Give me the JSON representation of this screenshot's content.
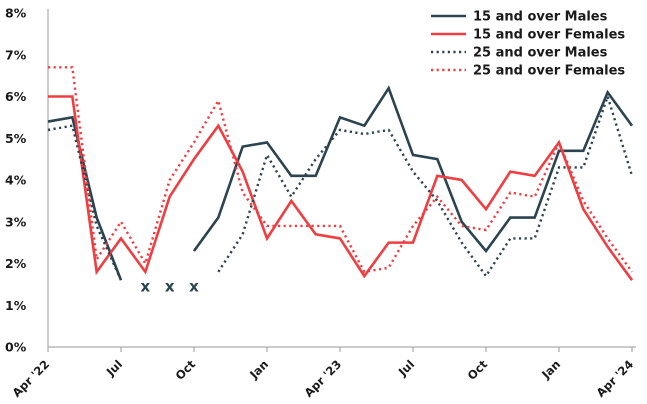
{
  "chart_data": {
    "type": "line",
    "title": "",
    "xlabel": "",
    "ylabel": "",
    "ylim": [
      0,
      8
    ],
    "y_ticks": [
      "0%",
      "1%",
      "2%",
      "3%",
      "4%",
      "5%",
      "6%",
      "7%",
      "8%"
    ],
    "x_tick_labels": [
      {
        "index": 0,
        "label": "Apr '22"
      },
      {
        "index": 3,
        "label": "Jul"
      },
      {
        "index": 6,
        "label": "Oct"
      },
      {
        "index": 9,
        "label": "Jan"
      },
      {
        "index": 12,
        "label": "Apr '23"
      },
      {
        "index": 15,
        "label": "Jul"
      },
      {
        "index": 18,
        "label": "Oct"
      },
      {
        "index": 21,
        "label": "Jan"
      },
      {
        "index": 24,
        "label": "Apr '24"
      }
    ],
    "grid": false,
    "legend_position": "top-right",
    "missing_marker": "x",
    "missing_indices": [
      4,
      5,
      6
    ],
    "series": [
      {
        "name": "15 and over  Males",
        "color": "#2b4450",
        "dash": "solid",
        "values": [
          5.4,
          5.5,
          3.1,
          1.6,
          null,
          null,
          2.3,
          3.1,
          4.8,
          4.9,
          4.1,
          4.1,
          5.5,
          5.3,
          6.2,
          4.6,
          4.5,
          3.0,
          2.3,
          3.1,
          3.1,
          4.7,
          4.7,
          6.1,
          5.3
        ]
      },
      {
        "name": "15 and over  Females",
        "color": "#ef3e42",
        "dash": "solid",
        "values": [
          6.0,
          6.0,
          1.8,
          2.6,
          1.8,
          3.6,
          4.5,
          5.3,
          4.2,
          2.6,
          3.5,
          2.7,
          2.6,
          1.7,
          2.5,
          2.5,
          4.1,
          4.0,
          3.3,
          4.2,
          4.1,
          4.9,
          3.3,
          2.4,
          1.6
        ]
      },
      {
        "name": "25 and over  Males",
        "color": "#2b4450",
        "dash": "dotted",
        "values": [
          5.2,
          5.3,
          2.9,
          1.6,
          null,
          null,
          null,
          1.8,
          2.7,
          4.6,
          3.6,
          4.5,
          5.2,
          5.1,
          5.2,
          4.2,
          3.5,
          2.5,
          1.7,
          2.6,
          2.6,
          4.3,
          4.3,
          6.0,
          4.1
        ]
      },
      {
        "name": "25 and over  Females",
        "color": "#ef3e42",
        "dash": "dotted",
        "values": [
          6.7,
          6.7,
          2.1,
          3.0,
          2.0,
          4.0,
          4.9,
          5.9,
          3.7,
          2.9,
          2.9,
          2.9,
          2.9,
          1.8,
          1.9,
          2.9,
          3.6,
          2.9,
          2.8,
          3.7,
          3.6,
          4.9,
          3.5,
          2.6,
          1.8
        ]
      }
    ]
  }
}
